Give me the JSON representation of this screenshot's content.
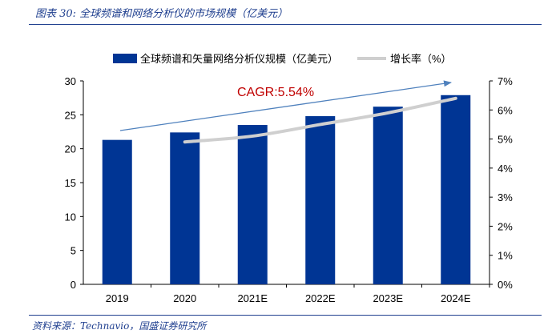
{
  "figure": {
    "title": "图表 30: 全球频谱和网络分析仪的市场规模（亿美元）",
    "source": "资料来源：Technavio，国盛证券研究所"
  },
  "colors": {
    "bar": "#003594",
    "line": "#cfcfcf",
    "arrow": "#4f81bd",
    "cagr": "#c00000",
    "rule": "#1f3f8f"
  },
  "chart_data": {
    "type": "bar",
    "categories": [
      "2019",
      "2020",
      "2021E",
      "2022E",
      "2023E",
      "2024E"
    ],
    "series": [
      {
        "name": "全球频谱和矢量网络分析仪规模（亿美元）",
        "type": "bar",
        "axis": "left",
        "values": [
          21.3,
          22.4,
          23.5,
          24.8,
          26.2,
          27.9
        ]
      },
      {
        "name": "增长率（%）",
        "type": "line",
        "axis": "right",
        "values": [
          null,
          4.9,
          5.1,
          5.5,
          5.9,
          6.4
        ]
      }
    ],
    "y_left": {
      "min": 0,
      "max": 30,
      "ticks": [
        "0",
        "5",
        "10",
        "15",
        "20",
        "25",
        "30"
      ]
    },
    "y_right": {
      "min": 0,
      "max": 7,
      "ticks": [
        "0%",
        "1%",
        "2%",
        "3%",
        "4%",
        "5%",
        "6%",
        "7%"
      ]
    },
    "annotation": "CAGR:5.54%",
    "legend_position": "top-center",
    "grid": false
  }
}
